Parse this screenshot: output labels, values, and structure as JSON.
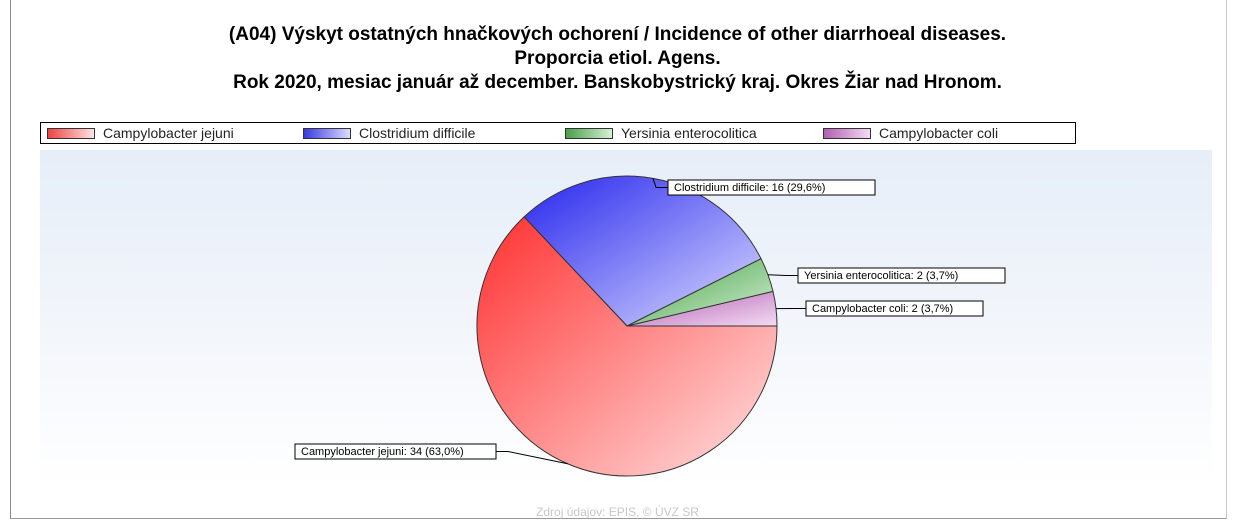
{
  "chart_data": {
    "type": "pie",
    "title": "(A04) Výskyt ostatných hnačkových ochorení / Incidence of other diarrhoeal diseases.",
    "subtitle": "Proporcia etiol. Agens.",
    "subtitle2": "Rok 2020, mesiac január až december. Banskobystrický kraj. Okres Žiar nad Hronom.",
    "slices": [
      {
        "name": "Campylobacter jejuni",
        "value": 34,
        "percent": "63,0%",
        "label": "Campylobacter jejuni: 34 (63,0%)",
        "color": "#ff3030",
        "light": "#ffe2e2",
        "legend_color": "#ee4444"
      },
      {
        "name": "Clostridium difficile",
        "value": 16,
        "percent": "29,6%",
        "label": "Clostridium difficile: 16 (29,6%)",
        "color": "#2626ee",
        "light": "#dcdcff",
        "legend_color": "#3a3ae0"
      },
      {
        "name": "Yersinia enterocolitica",
        "value": 2,
        "percent": "3,7%",
        "label": "Yersinia enterocolitica: 2 (3,7%)",
        "color": "#3f9f3f",
        "light": "#d6f0d6",
        "legend_color": "#4aa04a"
      },
      {
        "name": "Campylobacter coli",
        "value": 2,
        "percent": "3,7%",
        "label": "Campylobacter coli: 2 (3,7%)",
        "color": "#b05ab0",
        "light": "#f3dcf3",
        "legend_color": "#b35eb3"
      }
    ],
    "legend_position": "top",
    "source": "Zdroj údajov: EPIS, © ÚVZ SR"
  }
}
